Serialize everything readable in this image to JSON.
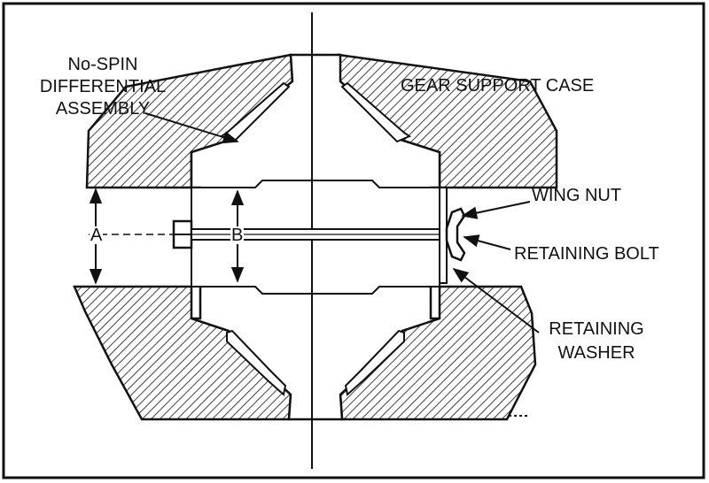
{
  "labels": {
    "nospin_line1": "No-SPIN",
    "nospin_line2": "DIFFERENTIAL",
    "nospin_line3": "ASSEMBLY",
    "gear_support_case": "GEAR SUPPORT CASE",
    "wing_nut": "WING NUT",
    "retaining_bolt": "RETAINING BOLT",
    "retaining_washer_line1": "RETAINING",
    "retaining_washer_line2": "WASHER",
    "dim_a": "A",
    "dim_b": "B"
  }
}
